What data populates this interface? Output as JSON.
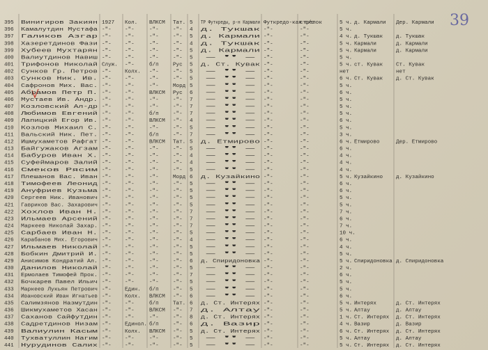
{
  "page_number": "39",
  "table": {
    "rows": [
      [
        "395",
        "Винигиров Закиян",
        "1927",
        "Кол.",
        "ВЛКСМ",
        "Тат.",
        "5",
        "ТР Футкреды, р-н Кармали",
        "Футкредо-кая с/с",
        "стрелок",
        "5 ч.",
        "д. Кармали",
        "Дер. Кармали"
      ],
      [
        "396",
        "Камалутдин Мустафа",
        "-\"-",
        "-\"-",
        "-\"-",
        "-\"-",
        "4",
        "д. Тукшак",
        "-\"-",
        "-\"-",
        "5 ч.",
        null,
        null
      ],
      [
        "397",
        "Галиков Азгар",
        "-\"-",
        "-\"-",
        "-\"-",
        "-\"-",
        "5",
        "д. Кармали",
        "-\"-",
        "-\"-",
        "4 ч.",
        "д. Тукшак",
        "д. Тукшак"
      ],
      [
        "398",
        "Хазеретдинов Фази",
        "-\"-",
        "-\"-",
        "-\"-",
        "-\"-",
        "4",
        "д. Тукшак",
        "-\"-",
        "-\"-",
        "5 ч.",
        "Кармали",
        "д. Кармали"
      ],
      [
        "399",
        "Хубеев Мухтарян",
        "-\"-",
        "-\"-",
        "-\"-",
        "-\"-",
        "5",
        "д. Кармали",
        "-\"-",
        "-\"-",
        "5 ч.",
        "Кармали",
        "д. Кармали"
      ],
      [
        "400",
        "Валиутдинов Навиш",
        "-\"-",
        "-\"-",
        "-\"-",
        "-\"-",
        "5",
        "-\"-",
        "-\"-",
        "-\"-",
        "5 ч.",
        null,
        null
      ],
      [
        "401",
        "Трифонов Николай",
        "Служ.",
        "-\"-",
        "б/п",
        "Рус",
        "5",
        "д. Ст. Кувак",
        "-\"-",
        "-\"-",
        "5 ч.",
        "ст. Кувак",
        "Ст. Кувак"
      ],
      [
        "402",
        "Сунков Гр. Петров",
        "-\"-",
        "Колх.",
        "-\"-",
        "-\"-",
        "5",
        "-\"-",
        "-\"-",
        "-\"-",
        "нет",
        null,
        "нет"
      ],
      [
        "403",
        "Сунков Ник. Ив.",
        "-\"-",
        "-\"-",
        "-\"-",
        "-\"-",
        "5",
        "-\"-",
        "-\"-",
        "-\"-",
        "6 ч.",
        "Ст. Кувак",
        "д. Ст. Кувак"
      ],
      [
        "404",
        "Сафронов Мих. Вас.",
        "-\"-",
        "-\"-",
        "-\"-",
        "Морд",
        "5",
        "-\"-",
        "-\"-",
        "-\"-",
        "5 ч.",
        null,
        null
      ],
      [
        "405",
        "Абрамов Петр П.",
        "-\"-",
        "-\"-",
        "ВЛКСМ",
        "Рус",
        "6",
        "-\"-",
        "-\"-",
        "-\"-",
        "6 ч.",
        null,
        null
      ],
      [
        "406",
        "Мустаев Ив. Андр.",
        "-\"-",
        "-\"-",
        "-\"-",
        "-\"-",
        "7",
        "-\"-",
        "-\"-",
        "-\"-",
        "5 ч.",
        null,
        null
      ],
      [
        "407",
        "Козловский Ал-др",
        "-\"-",
        "-\"-",
        "-\"-",
        "-\"-",
        "7",
        "-\"-",
        "-\"-",
        "-\"-",
        "5 ч.",
        null,
        null
      ],
      [
        "408",
        "Любимов Евгений",
        "-\"-",
        "-\"-",
        "б/п",
        "-\"-",
        "7",
        "-\"-",
        "-\"-",
        "-\"-",
        "5 ч.",
        null,
        null
      ],
      [
        "409",
        "Лапицкий Егор Ив.",
        "-\"-",
        "-\"-",
        "ВЛКСМ",
        "-\"-",
        "4",
        "-\"-",
        "-\"-",
        "-\"-",
        "6 ч.",
        null,
        null
      ],
      [
        "410",
        "Козлов Михаил С.",
        "-\"-",
        "-\"-",
        "-\"-",
        "-\"-",
        "5",
        "-\"-",
        "-\"-",
        "-\"-",
        "5 ч.",
        null,
        null
      ],
      [
        "411",
        "Вальский Ник. Пет.",
        "-\"-",
        "-\"-",
        "б/п",
        "-\"-",
        "7",
        "-\"-",
        "-\"-",
        "-\"-",
        "3 ч.",
        null,
        null
      ],
      [
        "412",
        "Ишмухаметов Рафгат",
        "-\"-",
        "-\"-",
        "ВЛКСМ",
        "Тат.",
        "5",
        "д. Етмирово",
        "-\"-",
        "-\"-",
        "6 ч.",
        "Етмирово",
        "Дер. Етмирово"
      ],
      [
        "413",
        "Байгужаков Агзам",
        "-\"-",
        "-\"-",
        "-\"-",
        "-\"-",
        "5",
        "-\"-",
        "-\"-",
        "-\"-",
        "6 ч.",
        null,
        null
      ],
      [
        "414",
        "Бабуров Иван Х.",
        "-\"-",
        "-\"-",
        "-\"-",
        "-\"-",
        "4",
        "-\"-",
        "-\"-",
        "-\"-",
        "4 ч.",
        null,
        null
      ],
      [
        "415",
        "Суфеймаров Залий",
        "-\"-",
        "-\"-",
        "-\"-",
        "-\"-",
        "4",
        "-\"-",
        "-\"-",
        "-\"-",
        "4 ч.",
        null,
        null
      ],
      [
        "416",
        "Смеков Рясим",
        "-\"-",
        "-\"-",
        "-\"-",
        "-\"-",
        "5",
        "-\"-",
        "-\"-",
        "-\"-",
        "4 ч.",
        null,
        null
      ],
      [
        "417",
        "Плешанов Вас. Иван",
        "-\"-",
        "-\"-",
        "-\"-",
        "Морд",
        "6",
        "д. Кузайкино",
        "-\"-",
        "-\"-",
        "5 ч.",
        "Кузайкино",
        "д. Кузайкино"
      ],
      [
        "418",
        "Тимофеев Леонид",
        "-\"-",
        "-\"-",
        "-\"-",
        "-\"-",
        "5",
        "-\"-",
        "-\"-",
        "-\"-",
        "6 ч.",
        null,
        null
      ],
      [
        "419",
        "Ануфриев Кузьма",
        "-\"-",
        "-\"-",
        "-\"-",
        "-\"-",
        "5",
        "-\"-",
        "-\"-",
        "-\"-",
        "6 ч.",
        null,
        null
      ],
      [
        "420",
        "Сергеев Ник. Иванович",
        "-\"-",
        "-\"-",
        "-\"-",
        "-\"-",
        "5",
        "-\"-",
        "-\"-",
        "-\"-",
        "5 ч.",
        null,
        null
      ],
      [
        "421",
        "Гавриков Вас. Захарович",
        "-\"-",
        "-\"-",
        "-\"-",
        "-\"-",
        "5",
        "-\"-",
        "-\"-",
        "-\"-",
        "5 ч.",
        null,
        null
      ],
      [
        "422",
        "Хохлов Иван Н.",
        "-\"-",
        "-\"-",
        "-\"-",
        "-\"-",
        "7",
        "-\"-",
        "-\"-",
        "-\"-",
        "7 ч.",
        null,
        null
      ],
      [
        "423",
        "Ильмаев Арсений",
        "-\"-",
        "-\"-",
        "-\"-",
        "-\"-",
        "7",
        "-\"-",
        "-\"-",
        "-\"-",
        "6 ч.",
        null,
        null
      ],
      [
        "424",
        "Маркеев Николай Захар.",
        "-\"-",
        "-\"-",
        "-\"-",
        "-\"-",
        "7",
        "-\"-",
        "-\"-",
        "-\"-",
        "7 ч.",
        null,
        null
      ],
      [
        "425",
        "Сарбаев Иван Н.",
        "-\"-",
        "-\"-",
        "-\"-",
        "-\"-",
        "5",
        "-\"-",
        "-\"-",
        "-\"-",
        "10 ч.",
        null,
        null
      ],
      [
        "426",
        "Карабанов Мих. Егорович",
        "-\"-",
        "-\"-",
        "-\"-",
        "-\"-",
        "4",
        "-\"-",
        "-\"-",
        "-\"-",
        "6 ч.",
        null,
        null
      ],
      [
        "427",
        "Ильмаев Николай",
        "-\"-",
        "-\"-",
        "-\"-",
        "-\"-",
        "5",
        "-\"-",
        "-\"-",
        "-\"-",
        "4 ч.",
        null,
        null
      ],
      [
        "428",
        "Бобкин Дмитрий И.",
        "-\"-",
        "-\"-",
        "-\"-",
        "-\"-",
        "5",
        "-\"-",
        "-\"-",
        "-\"-",
        "5 ч.",
        null,
        null
      ],
      [
        "429",
        "Анисимов Кондратий Ал.",
        "-\"-",
        "-\"-",
        "-\"-",
        "-\"-",
        "6",
        "д. Спиридоновка",
        "-\"-",
        "-\"-",
        "5 ч.",
        "Спиридоновка",
        "д. Спиридоновка"
      ],
      [
        "430",
        "Данилов Николай",
        "-\"-",
        "-\"-",
        "-\"-",
        "-\"-",
        "5",
        "-\"-",
        "-\"-",
        "-\"-",
        "2 ч.",
        null,
        null
      ],
      [
        "431",
        "Ермолаев Тимофей Прок.",
        "-\"-",
        "-\"-",
        "-\"-",
        "-\"-",
        "7",
        "-\"-",
        "-\"-",
        "-\"-",
        "6 ч.",
        null,
        null
      ],
      [
        "432",
        "Бочкарев Павел Ильич",
        "-\"-",
        "-\"-",
        "-\"-",
        "-\"-",
        "5",
        "-\"-",
        "-\"-",
        "-\"-",
        "5 ч.",
        null,
        null
      ],
      [
        "433",
        "Маркеев Лукьян Петрович",
        "-\"-",
        "Един.",
        "б/п",
        "-\"-",
        "5",
        "-\"-",
        "-\"-",
        "-\"-",
        "5 ч.",
        null,
        null
      ],
      [
        "434",
        "Ивановский Иван Игнатьев",
        "-\"-",
        "Колх.",
        "ВЛКСМ",
        "-\"-",
        "6",
        "-\"-",
        "-\"-",
        "-\"-",
        "6 ч.",
        null,
        null
      ],
      [
        "435",
        "Салимзянов Назмутдин",
        "-\"-",
        "-\"-",
        "б/п",
        "Тат.",
        "6",
        "д. Ст. Интерях",
        "-\"-",
        "-\"-",
        "5 ч.",
        "Интерях",
        "д. Ст. Интерях"
      ],
      [
        "436",
        "Шикмухаметов Хасан",
        "-\"-",
        "-\"-",
        "ВЛКСМ",
        "-\"-",
        "7",
        "д. Алтау",
        "-\"-",
        "-\"-",
        "5 ч.",
        "Алтау",
        "д. Алтау"
      ],
      [
        "437",
        "Саханов Сайфутдин",
        "-\"-",
        "-\"-",
        "-\"-",
        "-\"-",
        "8",
        "д. Ст. Интерях",
        "-\"-",
        "-\"-",
        "1 ч.",
        "Ст. Интерях",
        "д. Ст. Интерях"
      ],
      [
        "438",
        "Садретдинов Низам",
        "-\"-",
        "Единол.",
        "б/п",
        "-\"-",
        "6",
        "д. Вазир",
        "-\"-",
        "-\"-",
        "4 ч.",
        "Вазир",
        "д. Вазир"
      ],
      [
        "439",
        "Валиулин Касым",
        "-\"-",
        "Колх.",
        "ВЛКСМ",
        "-\"-",
        "5",
        "д. Ст. Интерях",
        "-\"-",
        "-\"-",
        "6 ч.",
        "Ст. Интерях",
        "д. Ст. Интерях"
      ],
      [
        "440",
        "Тухватуллин Нагим",
        "-\"-",
        "-\"-",
        "-\"-",
        "-\"-",
        "5",
        "-\"-",
        "-\"-",
        "-\"-",
        "5 ч.",
        "Алтау",
        "д. Алтау"
      ],
      [
        "441",
        "Нурудинов Салих",
        "-\"-",
        "-\"-",
        "-\"-",
        "-\"-",
        "5",
        "-\"-",
        "-\"-",
        "-\"-",
        "5 ч.",
        "Ст. Интерях",
        "д. Ст. Интерях"
      ]
    ]
  }
}
